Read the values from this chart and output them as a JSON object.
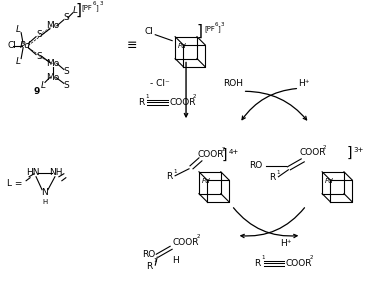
{
  "bg_color": "#ffffff",
  "fig_width": 3.84,
  "fig_height": 2.89,
  "dpi": 100,
  "equiv_symbol": "≡",
  "minus_cl": "- Cl⁻",
  "roh": "ROH",
  "h_plus_top": "H⁺",
  "charge_4plus": "4+",
  "charge_3plus": "3+",
  "h_plus_bot": "H⁺",
  "label_9": "9",
  "label_L_eq": "L ="
}
